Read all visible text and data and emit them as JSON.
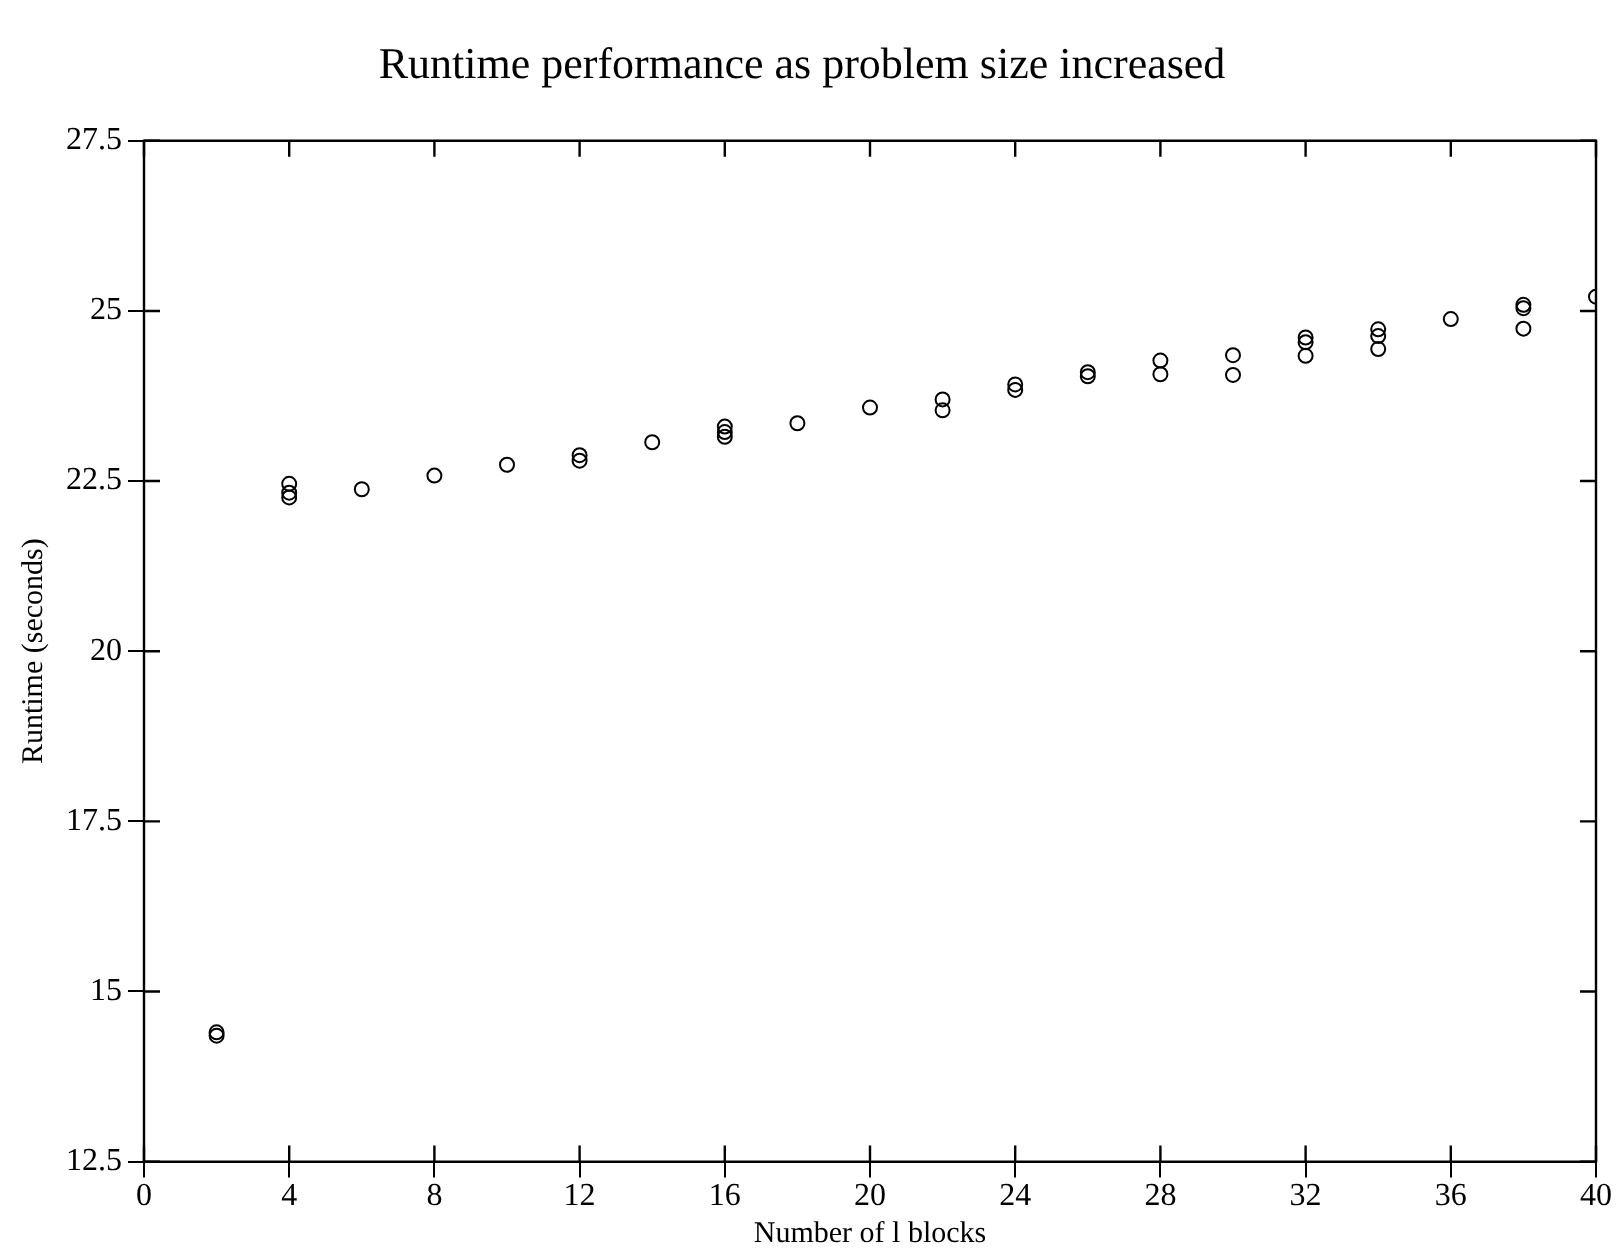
{
  "chart_data": {
    "type": "scatter",
    "title": "Runtime performance as problem size increased",
    "xlabel": "Number of l blocks",
    "ylabel": "Runtime (seconds)",
    "series": [
      {
        "color": "#000000",
        "x": [
          2,
          2,
          4,
          4,
          4,
          6,
          8,
          10,
          12,
          12,
          14,
          16,
          16,
          16,
          18,
          20,
          22,
          22,
          24,
          24,
          26,
          26,
          28,
          28,
          30,
          30,
          32,
          32,
          32,
          34,
          34,
          34,
          36,
          38,
          38,
          38,
          40
        ],
        "values": [
          14.4,
          14.35,
          22.46,
          22.33,
          22.26,
          22.38,
          22.58,
          22.74,
          22.88,
          22.8,
          23.07,
          23.3,
          23.22,
          23.15,
          23.35,
          23.58,
          23.7,
          23.54,
          23.92,
          23.84,
          24.1,
          24.04,
          24.27,
          24.07,
          24.35,
          24.06,
          24.61,
          24.54,
          24.34,
          24.73,
          24.63,
          24.44,
          24.88,
          25.09,
          25.04,
          24.74,
          25.21
        ]
      }
    ],
    "xlim": [
      0,
      40
    ],
    "xticks": [
      0,
      4,
      8,
      12,
      16,
      20,
      24,
      28,
      32,
      36,
      40
    ],
    "ylim": [
      12.5,
      27.5
    ],
    "yticks": [
      12.5,
      15,
      17.5,
      20,
      22.5,
      25,
      27.5
    ],
    "grid": false,
    "legend": false,
    "marker": "circle"
  }
}
